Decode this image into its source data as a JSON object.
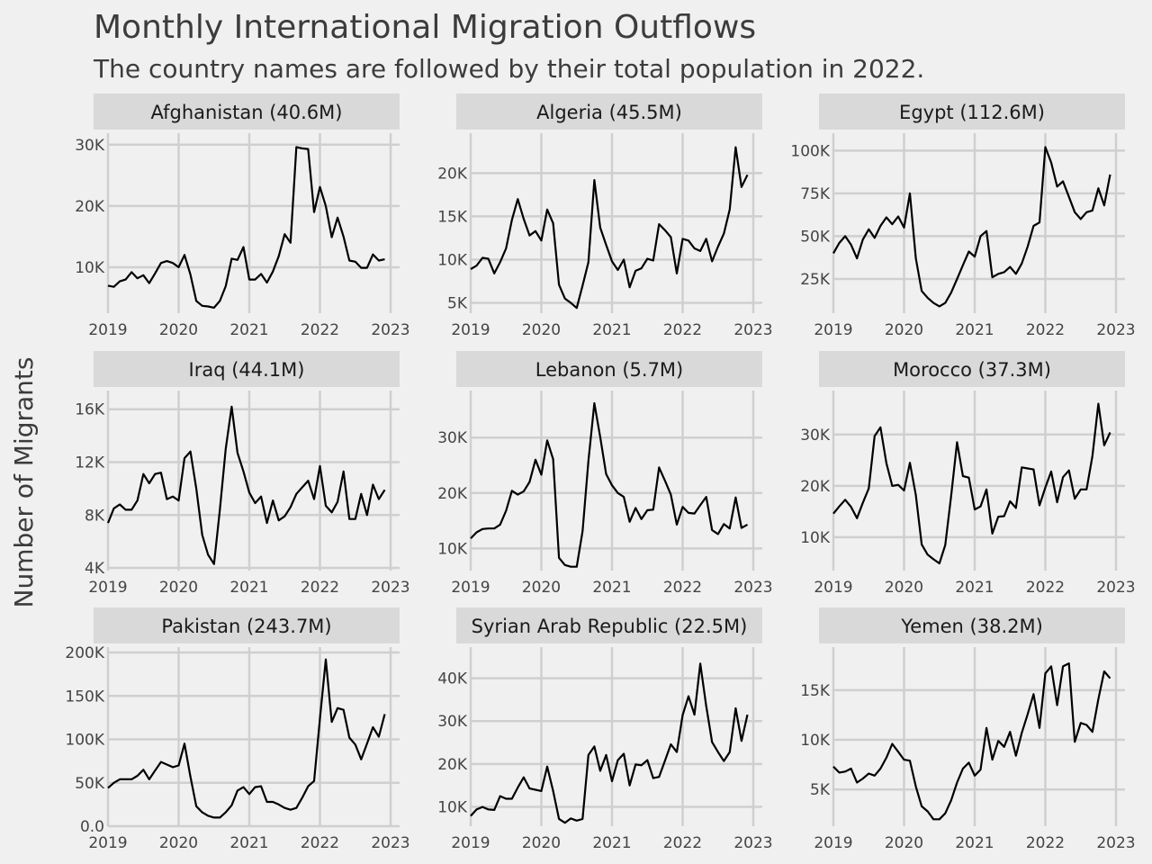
{
  "chart_data": {
    "type": "line",
    "title": "Monthly International Migration Outflows",
    "subtitle": "The country names are followed by their total population in 2022.",
    "ylabel": "Number of Migrants",
    "xlabel": "",
    "x_ticks": [
      "2019",
      "2020",
      "2021",
      "2022",
      "2023"
    ],
    "x_range": [
      2019,
      2023
    ],
    "grid": true,
    "facets": [
      {
        "label": "Afghanistan (40.6M)",
        "ylim": [
          2500,
          31000
        ],
        "yticks": [
          10000,
          20000,
          30000
        ],
        "ytick_labels": [
          "10K",
          "20K",
          "30K"
        ],
        "values": [
          7000,
          6800,
          7700,
          8000,
          9200,
          8200,
          8700,
          7400,
          9000,
          10700,
          11000,
          10700,
          10000,
          12000,
          8800,
          4500,
          3700,
          3600,
          3400,
          4500,
          6900,
          11400,
          11200,
          13300,
          8000,
          8000,
          8900,
          7500,
          9300,
          11800,
          15400,
          14000,
          29600,
          29400,
          29300,
          19000,
          23100,
          20000,
          14900,
          18100,
          15000,
          11100,
          10900,
          9900,
          9900,
          12100,
          11100,
          11300
        ]
      },
      {
        "label": "Algeria (45.5M)",
        "ylim": [
          3800,
          24000
        ],
        "yticks": [
          5000,
          10000,
          15000,
          20000
        ],
        "ytick_labels": [
          "5K",
          "10K",
          "15K",
          "20K"
        ],
        "values": [
          8900,
          9300,
          10200,
          10100,
          8400,
          9700,
          11300,
          14600,
          17000,
          14700,
          12800,
          13300,
          12200,
          15800,
          14200,
          7100,
          5500,
          5000,
          4400,
          7000,
          9700,
          19200,
          13700,
          11700,
          9800,
          8800,
          10000,
          6800,
          8700,
          9000,
          10100,
          9900,
          14100,
          13400,
          12600,
          8400,
          12400,
          12200,
          11300,
          11000,
          12400,
          9800,
          11500,
          13000,
          15800,
          23000,
          18400,
          19800
        ]
      },
      {
        "label": "Egypt (112.6M)",
        "ylim": [
          5000,
          107000
        ],
        "yticks": [
          25000,
          50000,
          75000,
          100000
        ],
        "ytick_labels": [
          "25K",
          "50K",
          "75K",
          "100K"
        ],
        "values": [
          40000,
          46000,
          50000,
          45000,
          37000,
          48000,
          54000,
          49000,
          56000,
          61000,
          57000,
          61500,
          55000,
          75000,
          37000,
          18000,
          14000,
          11000,
          9000,
          11000,
          17000,
          25000,
          33000,
          41000,
          38000,
          50000,
          53000,
          26000,
          28000,
          29000,
          32000,
          28000,
          34000,
          44000,
          56000,
          58000,
          102000,
          93000,
          79000,
          82000,
          73000,
          64000,
          60000,
          64000,
          65000,
          78000,
          68000,
          86000
        ]
      },
      {
        "label": "Iraq (44.1M)",
        "ylim": [
          3800,
          17000
        ],
        "yticks": [
          4000,
          8000,
          12000,
          16000
        ],
        "ytick_labels": [
          "4K",
          "8K",
          "12K",
          "16K"
        ],
        "values": [
          7400,
          8500,
          8800,
          8400,
          8400,
          9100,
          11100,
          10400,
          11100,
          11200,
          9200,
          9400,
          9100,
          12300,
          12800,
          10000,
          6500,
          5000,
          4300,
          8400,
          13000,
          16200,
          12700,
          11300,
          9700,
          8900,
          9400,
          7400,
          9100,
          7600,
          7900,
          8600,
          9600,
          10100,
          10600,
          9200,
          11700,
          8700,
          8200,
          9000,
          11300,
          7700,
          7700,
          9600,
          8000,
          10300,
          9200,
          9900
        ]
      },
      {
        "label": "Lebanon (5.7M)",
        "ylim": [
          6000,
          37500
        ],
        "yticks": [
          10000,
          20000,
          30000
        ],
        "ytick_labels": [
          "10K",
          "20K",
          "30K"
        ],
        "values": [
          11800,
          12900,
          13500,
          13600,
          13600,
          14300,
          16800,
          20400,
          19700,
          20300,
          22000,
          26000,
          23300,
          29500,
          26100,
          8300,
          7000,
          6700,
          6700,
          13100,
          25800,
          36200,
          30100,
          23400,
          21400,
          20000,
          19300,
          14800,
          17300,
          15300,
          16900,
          17000,
          24600,
          22200,
          19700,
          14300,
          17500,
          16400,
          16300,
          17800,
          19300,
          13300,
          12600,
          14400,
          13600,
          19200,
          13700,
          14300
        ]
      },
      {
        "label": "Morocco (37.3M)",
        "ylim": [
          3500,
          37500
        ],
        "yticks": [
          10000,
          20000,
          30000
        ],
        "ytick_labels": [
          "10K",
          "20K",
          "30K"
        ],
        "values": [
          14600,
          16000,
          17300,
          15900,
          13700,
          16700,
          19500,
          29700,
          31400,
          24400,
          20000,
          20200,
          19100,
          24500,
          18200,
          8600,
          6600,
          5700,
          4900,
          8500,
          18000,
          28500,
          21900,
          21600,
          15400,
          16000,
          19300,
          10700,
          14000,
          14100,
          17000,
          15700,
          23600,
          23400,
          23200,
          16200,
          19700,
          22800,
          16800,
          21700,
          23000,
          17500,
          19300,
          19300,
          25800,
          36000,
          27900,
          30400
        ]
      },
      {
        "label": "Pakistan (243.7M)",
        "ylim": [
          0,
          200000
        ],
        "yticks": [
          0,
          50000,
          100000,
          150000,
          200000
        ],
        "ytick_labels": [
          "0.0",
          "50K",
          "100K",
          "150K",
          "200K"
        ],
        "values": [
          44000,
          50000,
          54000,
          54000,
          54000,
          58000,
          65000,
          54000,
          64000,
          74000,
          71000,
          68000,
          70000,
          95000,
          57000,
          23000,
          16000,
          12000,
          10000,
          10000,
          16000,
          24000,
          41000,
          45000,
          37000,
          45000,
          46000,
          28000,
          28000,
          25000,
          21000,
          19000,
          21000,
          33000,
          46000,
          52000,
          124000,
          192000,
          120000,
          136000,
          134000,
          102000,
          94000,
          77000,
          95000,
          114000,
          103000,
          129000
        ]
      },
      {
        "label": "Syrian Arab Republic (22.5M)",
        "ylim": [
          5500,
          46000
        ],
        "yticks": [
          10000,
          20000,
          30000,
          40000
        ],
        "ytick_labels": [
          "10K",
          "20K",
          "30K",
          "40K"
        ],
        "values": [
          7900,
          9400,
          10000,
          9400,
          9300,
          12500,
          11900,
          11900,
          14500,
          16900,
          14300,
          14000,
          13700,
          19400,
          13700,
          7200,
          6300,
          7300,
          6800,
          7200,
          22100,
          24100,
          18400,
          22100,
          16000,
          20900,
          22400,
          15000,
          19900,
          19700,
          20900,
          16700,
          17000,
          20800,
          24600,
          22800,
          31400,
          35800,
          31500,
          43400,
          33500,
          25100,
          22800,
          20700,
          22800,
          33000,
          25400,
          31500
        ]
      },
      {
        "label": "Yemen (38.2M)",
        "ylim": [
          1300,
          18800
        ],
        "yticks": [
          5000,
          10000,
          15000
        ],
        "ytick_labels": [
          "5K",
          "10K",
          "15K"
        ],
        "values": [
          7300,
          6700,
          6800,
          7100,
          5700,
          6100,
          6600,
          6400,
          7100,
          8200,
          9600,
          8800,
          8000,
          7900,
          5300,
          3300,
          2800,
          2000,
          2000,
          2600,
          3900,
          5700,
          7100,
          7700,
          6400,
          7000,
          11200,
          8000,
          9900,
          9300,
          10800,
          8400,
          10700,
          12600,
          14600,
          11200,
          16700,
          17400,
          13500,
          17400,
          17700,
          9800,
          11700,
          11500,
          10800,
          14100,
          16900,
          16200
        ]
      }
    ]
  }
}
